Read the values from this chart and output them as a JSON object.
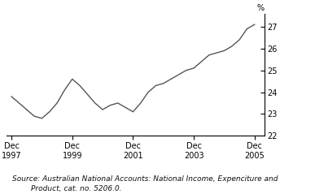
{
  "ylabel_right": "%",
  "source_line1": "Source: Australian National Accounts: National Income, Expenciture and",
  "source_line2": "        Product, cat. no. 5206.0.",
  "xlim_start": 1997.75,
  "xlim_end": 2006.25,
  "ylim": [
    22,
    27.6
  ],
  "yticks": [
    22,
    23,
    24,
    25,
    26,
    27
  ],
  "xtick_labels": [
    "Dec\n1997",
    "Dec\n1999",
    "Dec\n2001",
    "Dec\n2003",
    "Dec\n2005"
  ],
  "xtick_positions": [
    1997.92,
    1999.92,
    2001.92,
    2003.92,
    2005.92
  ],
  "line_color": "#555555",
  "line_width": 1.0,
  "data_x": [
    1997.92,
    1998.17,
    1998.42,
    1998.67,
    1998.92,
    1999.17,
    1999.42,
    1999.67,
    1999.92,
    2000.17,
    2000.42,
    2000.67,
    2000.92,
    2001.17,
    2001.42,
    2001.67,
    2001.92,
    2002.17,
    2002.42,
    2002.67,
    2002.92,
    2003.17,
    2003.42,
    2003.67,
    2003.92,
    2004.17,
    2004.42,
    2004.67,
    2004.92,
    2005.17,
    2005.42,
    2005.67,
    2005.92
  ],
  "data_y": [
    23.8,
    23.5,
    23.2,
    22.9,
    22.8,
    23.1,
    23.5,
    24.1,
    24.6,
    24.3,
    23.9,
    23.5,
    23.2,
    23.4,
    23.5,
    23.3,
    23.1,
    23.5,
    24.0,
    24.3,
    24.4,
    24.6,
    24.8,
    25.0,
    25.1,
    25.4,
    25.7,
    25.8,
    25.9,
    26.1,
    26.4,
    26.9,
    27.1
  ],
  "background_color": "#ffffff",
  "spine_color": "#000000"
}
